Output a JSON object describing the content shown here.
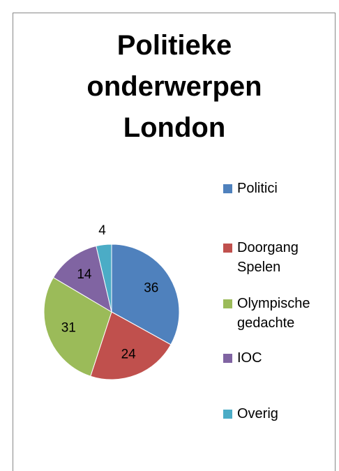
{
  "chart_data": {
    "type": "pie",
    "title": "Politieke onderwerpen London",
    "categories": [
      "Politici",
      "Doorgang Spelen",
      "Olympische gedachte",
      "IOC",
      "Overig"
    ],
    "values": [
      36,
      24,
      31,
      14,
      4
    ],
    "colors": [
      "#4f81bd",
      "#c0504d",
      "#9bbb59",
      "#8064a2",
      "#4bacc6"
    ],
    "legend": "right"
  }
}
